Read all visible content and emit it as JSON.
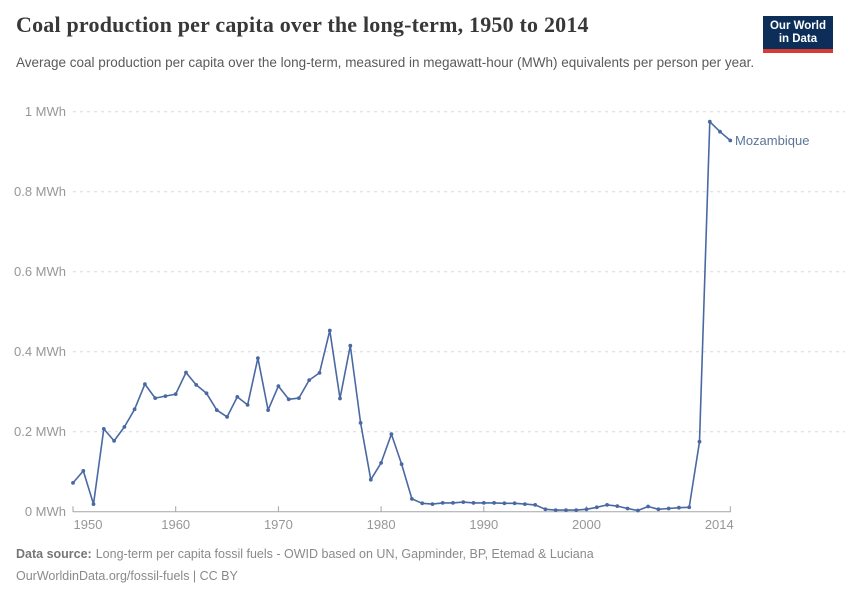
{
  "logo": {
    "line1": "Our World",
    "line2": "in Data"
  },
  "chart_data": {
    "type": "line",
    "title": "Coal production per capita over the long-term, 1950 to 2014",
    "subtitle": "Average coal production per capita over the long-term, measured in megawatt-hour (MWh) equivalents per person per year.",
    "entity": "Mozambique",
    "xlabel": "",
    "ylabel": "MWh",
    "ylim": [
      0,
      1
    ],
    "xlim": [
      1950,
      2014
    ],
    "grid": "dashed-horizontal",
    "legend": "inline-end-label",
    "yticks": [
      {
        "v": 0,
        "label": "0 MWh"
      },
      {
        "v": 0.2,
        "label": "0.2 MWh"
      },
      {
        "v": 0.4,
        "label": "0.4 MWh"
      },
      {
        "v": 0.6,
        "label": "0.6 MWh"
      },
      {
        "v": 0.8,
        "label": "0.8 MWh"
      },
      {
        "v": 1,
        "label": "1 MWh"
      }
    ],
    "xticks": [
      1950,
      1960,
      1970,
      1980,
      1990,
      2000,
      2014
    ],
    "years": [
      1950,
      1951,
      1952,
      1953,
      1954,
      1955,
      1956,
      1957,
      1958,
      1959,
      1960,
      1961,
      1962,
      1963,
      1964,
      1965,
      1966,
      1967,
      1968,
      1969,
      1970,
      1971,
      1972,
      1973,
      1974,
      1975,
      1976,
      1977,
      1978,
      1979,
      1980,
      1981,
      1982,
      1983,
      1984,
      1985,
      1986,
      1987,
      1988,
      1989,
      1990,
      1991,
      1992,
      1993,
      1994,
      1995,
      1996,
      1997,
      1998,
      1999,
      2000,
      2001,
      2002,
      2003,
      2004,
      2005,
      2006,
      2007,
      2008,
      2009,
      2010,
      2011,
      2012,
      2013,
      2014
    ],
    "values": [
      0.072,
      0.102,
      0.019,
      0.207,
      0.177,
      0.212,
      0.256,
      0.319,
      0.284,
      0.289,
      0.294,
      0.348,
      0.317,
      0.296,
      0.254,
      0.237,
      0.287,
      0.267,
      0.384,
      0.254,
      0.314,
      0.281,
      0.284,
      0.329,
      0.347,
      0.453,
      0.283,
      0.415,
      0.222,
      0.08,
      0.122,
      0.194,
      0.119,
      0.032,
      0.021,
      0.019,
      0.022,
      0.022,
      0.024,
      0.022,
      0.022,
      0.022,
      0.021,
      0.021,
      0.019,
      0.017,
      0.006,
      0.004,
      0.004,
      0.004,
      0.006,
      0.011,
      0.017,
      0.014,
      0.008,
      0.003,
      0.013,
      0.006,
      0.008,
      0.01,
      0.011,
      0.175,
      0.975,
      0.95,
      0.928
    ],
    "colors": {
      "line": "#4a69a2",
      "entity_label": "#5b7599",
      "grid": "#dadada",
      "axis": "#a5a5a5",
      "tick_text": "#979797"
    }
  },
  "footer": {
    "source_label": "Data source:",
    "source_text": "Long-term per capita fossil fuels - OWID based on UN, Gapminder, BP, Etemad & Luciana",
    "license": "OurWorldinData.org/fossil-fuels | CC BY"
  }
}
